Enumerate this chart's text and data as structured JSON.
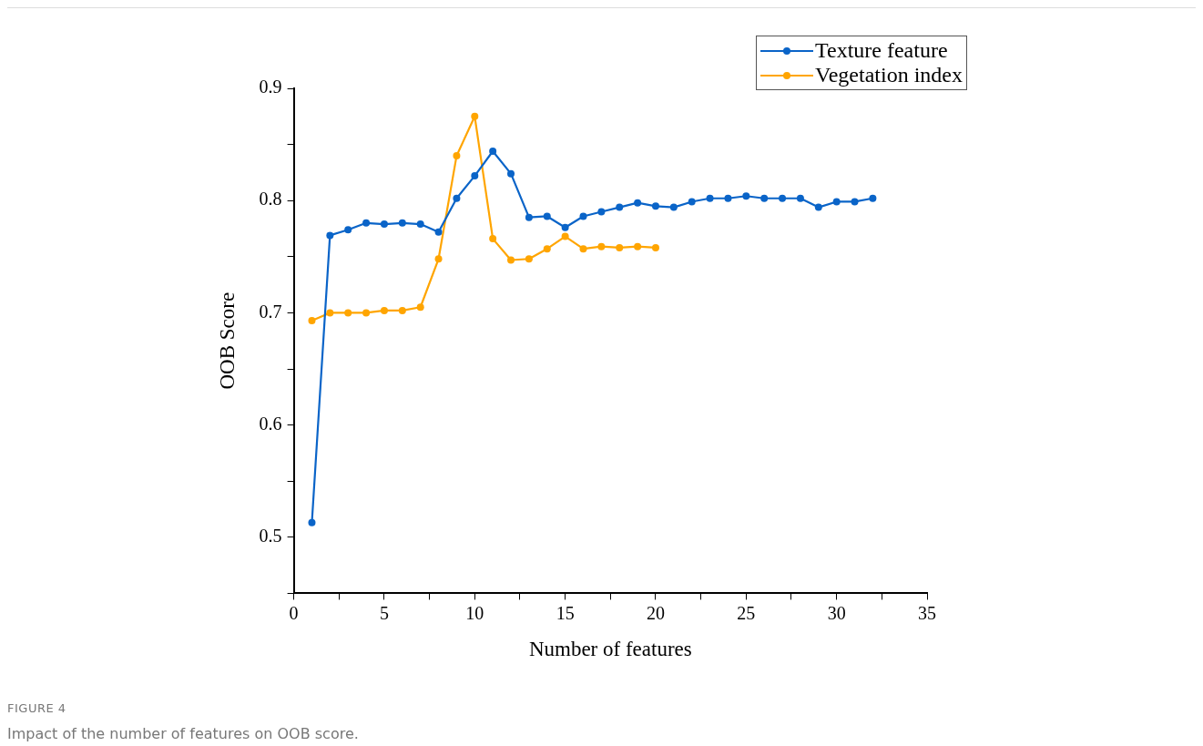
{
  "chart_data": {
    "type": "line",
    "xlabel": "Number of features",
    "ylabel": "OOB Score",
    "annotations": [
      "FIGURE 4",
      "Impact of the number of features on OOB score."
    ],
    "x": [
      1,
      2,
      3,
      4,
      5,
      6,
      7,
      8,
      9,
      10,
      11,
      12,
      13,
      14,
      15,
      16,
      17,
      18,
      19,
      20,
      21,
      22,
      23,
      24,
      25,
      26,
      27,
      28,
      29,
      30,
      31,
      32
    ],
    "series": [
      {
        "name": "Texture feature",
        "color": "#0a64c8",
        "values": [
          0.513,
          0.769,
          0.774,
          0.78,
          0.779,
          0.78,
          0.779,
          0.772,
          0.802,
          0.822,
          0.844,
          0.824,
          0.785,
          0.786,
          0.776,
          0.786,
          0.79,
          0.794,
          0.798,
          0.795,
          0.794,
          0.799,
          0.802,
          0.802,
          0.804,
          0.802,
          0.802,
          0.802,
          0.794,
          0.799,
          0.799,
          0.802
        ]
      },
      {
        "name": "Vegetation index",
        "color": "#ffa500",
        "x": [
          1,
          2,
          3,
          4,
          5,
          6,
          7,
          8,
          9,
          10,
          11,
          12,
          13,
          14,
          15,
          16,
          17,
          18,
          19,
          20
        ],
        "values": [
          0.693,
          0.7,
          0.7,
          0.7,
          0.702,
          0.702,
          0.705,
          0.748,
          0.84,
          0.875,
          0.766,
          0.747,
          0.748,
          0.757,
          0.768,
          0.757,
          0.759,
          0.758,
          0.759,
          0.758
        ]
      }
    ],
    "xlim": [
      0,
      35
    ],
    "xticks": [
      0,
      {
        "value": 2.5,
        "label": null
      },
      5,
      {
        "value": 7.5,
        "label": null
      },
      10,
      {
        "value": 12.5,
        "label": null
      },
      15,
      {
        "value": 17.5,
        "label": null
      },
      20,
      {
        "value": 22.5,
        "label": null
      },
      25,
      {
        "value": 27.5,
        "label": null
      },
      30,
      {
        "value": 32.5,
        "label": null
      },
      35
    ],
    "ylim": [
      0.45,
      0.9
    ],
    "yticks": [
      {
        "value": 0.45,
        "label": null
      },
      0.5,
      {
        "value": 0.55,
        "label": null
      },
      0.6,
      {
        "value": 0.65,
        "label": null
      },
      0.7,
      {
        "value": 0.75,
        "label": null
      },
      0.8,
      {
        "value": 0.85,
        "label": null
      },
      0.9
    ],
    "grid": false,
    "legend": "top right",
    "marker": "circle",
    "line_style": "solid"
  }
}
